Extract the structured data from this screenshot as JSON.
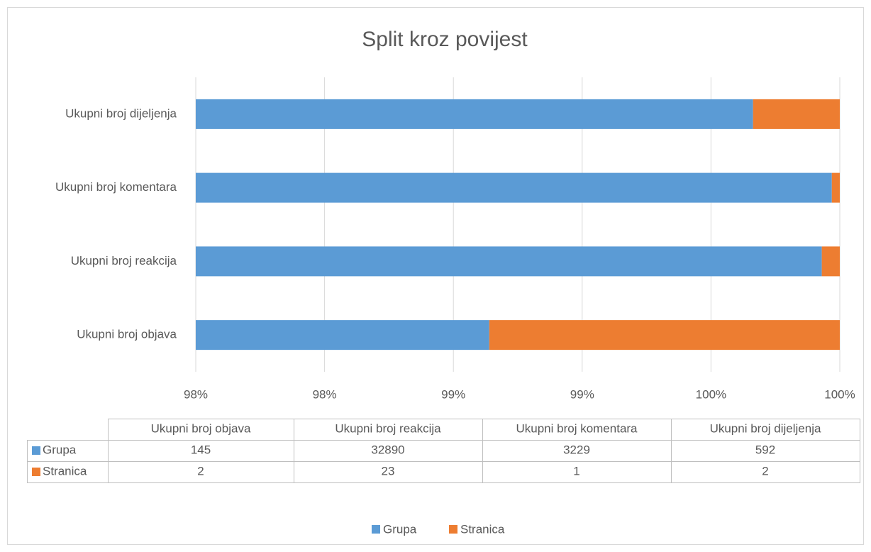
{
  "chart_data": {
    "type": "bar",
    "orientation": "horizontal",
    "stacking": "percent",
    "title": "Split kroz povijest",
    "categories": [
      "Ukupni broj objava",
      "Ukupni broj reakcija",
      "Ukupni broj komentara",
      "Ukupni broj dijeljenja"
    ],
    "series": [
      {
        "name": "Grupa",
        "color": "#5b9bd5",
        "values": [
          145,
          32890,
          3229,
          592
        ]
      },
      {
        "name": "Stranica",
        "color": "#ed7d31",
        "values": [
          2,
          23,
          1,
          2
        ]
      }
    ],
    "xlim": [
      97.5,
      100
    ],
    "xticks": [
      {
        "value": 97.5,
        "label": "98%"
      },
      {
        "value": 98,
        "label": "98%"
      },
      {
        "value": 98.5,
        "label": "99%"
      },
      {
        "value": 99,
        "label": "99%"
      },
      {
        "value": 99.5,
        "label": "100%"
      },
      {
        "value": 100,
        "label": "100%"
      }
    ],
    "grid": true,
    "data_table": true,
    "legend": "bottom"
  }
}
